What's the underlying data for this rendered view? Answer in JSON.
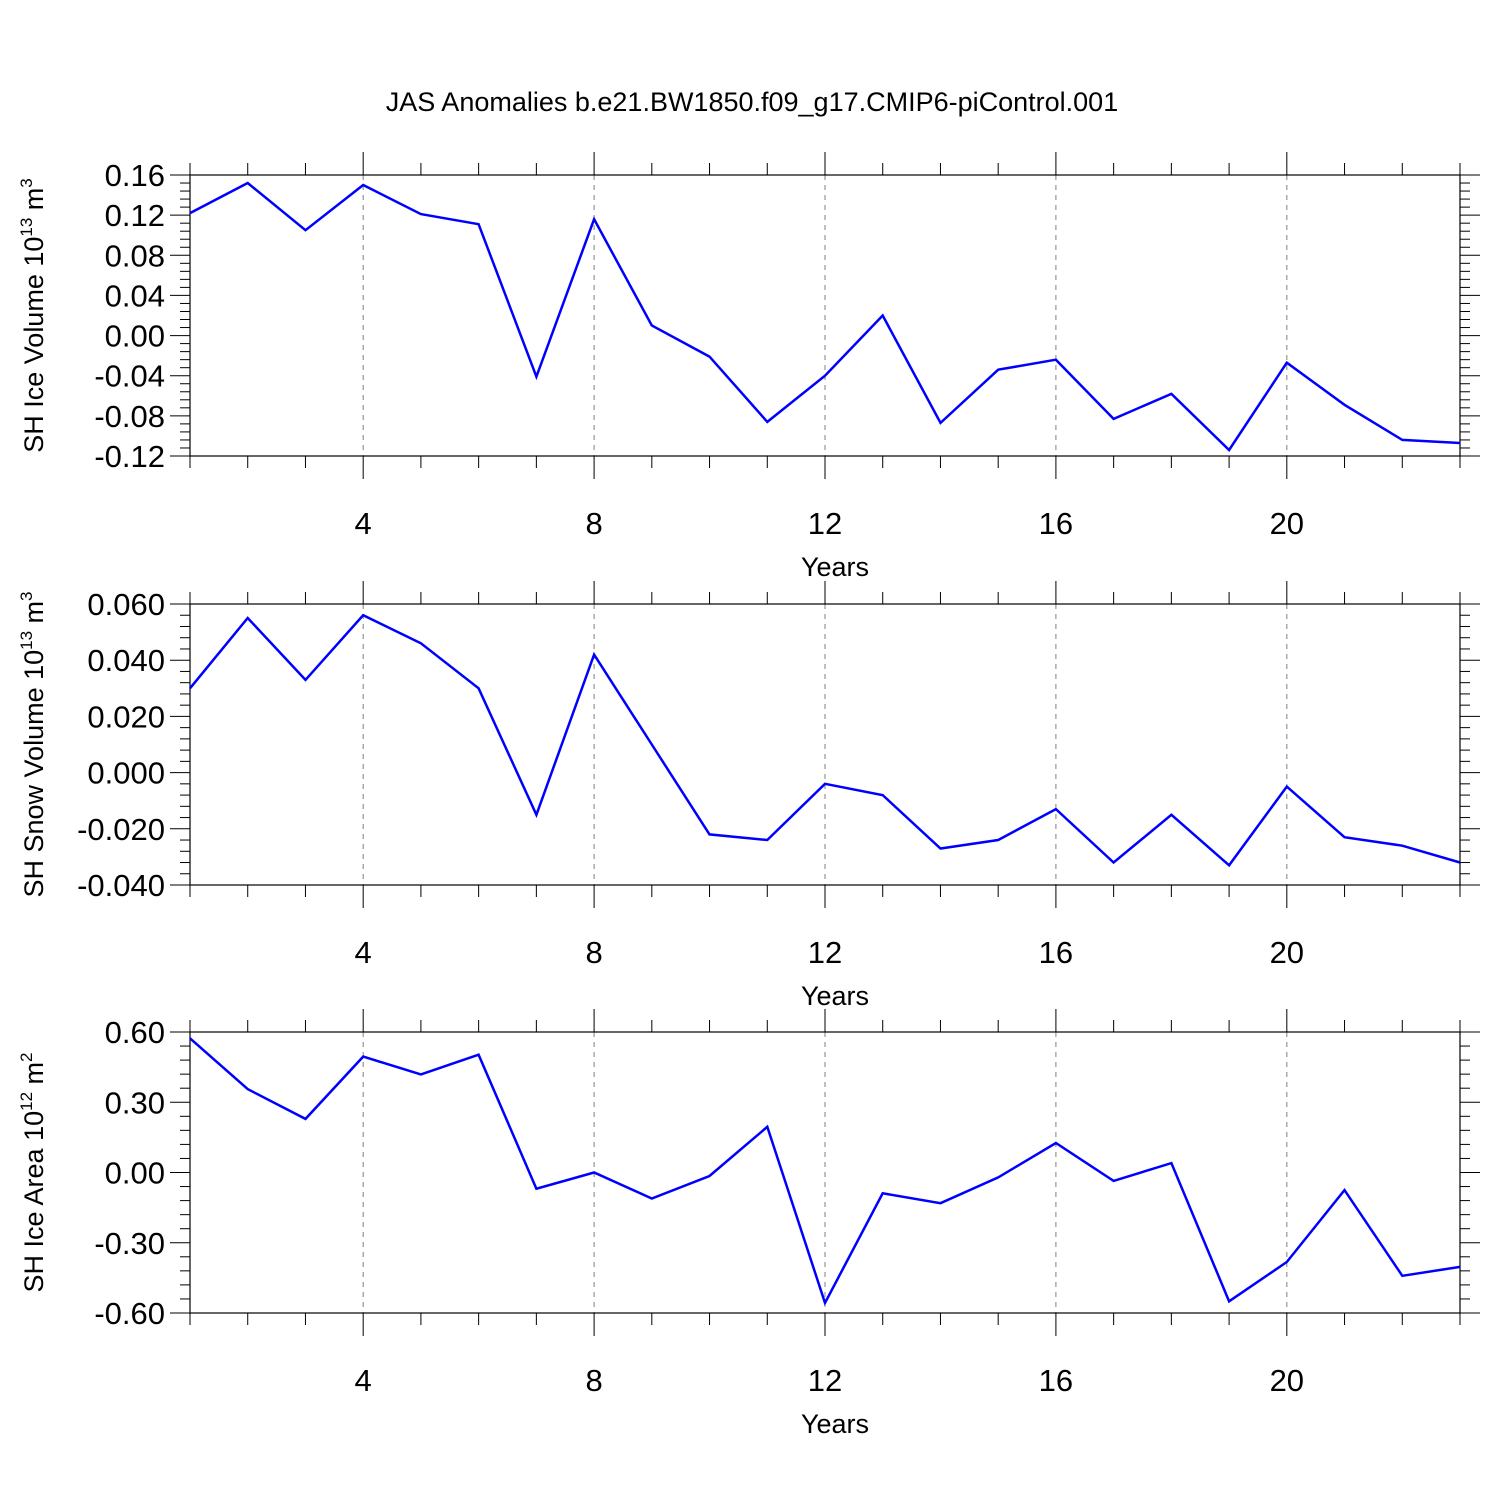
{
  "title": "JAS Anomalies b.e21.BW1850.f09_g17.CMIP6-piControl.001",
  "colors": {
    "line": "#0000ff",
    "axis": "#000000",
    "grid": "#808080"
  },
  "chart_data": [
    {
      "type": "line",
      "ylabel": "SH Ice Volume 10",
      "ylabel_sup": "13",
      "ylabel_unit": " m",
      "ylabel_unit_sup": "3",
      "xlabel": "Years",
      "xlim": [
        1,
        23
      ],
      "ylim": [
        -0.12,
        0.16
      ],
      "yticks": [
        -0.12,
        -0.08,
        -0.04,
        0.0,
        0.04,
        0.08,
        0.12,
        0.16
      ],
      "yticklabels": [
        "-0.12",
        "-0.08",
        "-0.04",
        "0.00",
        "0.04",
        "0.08",
        "0.12",
        "0.16"
      ],
      "xticks": [
        4,
        8,
        12,
        16,
        20
      ],
      "xticklabels": [
        "4",
        "8",
        "12",
        "16",
        "20"
      ],
      "grid_x": true,
      "series": [
        {
          "x": [
            1,
            2,
            3,
            4,
            5,
            6,
            7,
            8,
            9,
            10,
            11,
            12,
            13,
            14,
            15,
            16,
            17,
            18,
            19,
            20,
            21,
            22,
            23
          ],
          "values": [
            0.122,
            0.152,
            0.105,
            0.15,
            0.121,
            0.111,
            -0.041,
            0.116,
            0.01,
            -0.021,
            -0.086,
            -0.04,
            0.02,
            -0.087,
            -0.034,
            -0.024,
            -0.083,
            -0.058,
            -0.114,
            -0.027,
            -0.069,
            -0.104,
            -0.107
          ]
        }
      ]
    },
    {
      "type": "line",
      "ylabel": "SH Snow Volume 10",
      "ylabel_sup": "13",
      "ylabel_unit": " m",
      "ylabel_unit_sup": "3",
      "xlabel": "Years",
      "xlim": [
        1,
        23
      ],
      "ylim": [
        -0.04,
        0.06
      ],
      "yticks": [
        -0.04,
        -0.02,
        0.0,
        0.02,
        0.04,
        0.06
      ],
      "yticklabels": [
        "-0.040",
        "-0.020",
        "0.000",
        "0.020",
        "0.040",
        "0.060"
      ],
      "xticks": [
        4,
        8,
        12,
        16,
        20
      ],
      "xticklabels": [
        "4",
        "8",
        "12",
        "16",
        "20"
      ],
      "grid_x": true,
      "series": [
        {
          "x": [
            1,
            2,
            3,
            4,
            5,
            6,
            7,
            8,
            9,
            10,
            11,
            12,
            13,
            14,
            15,
            16,
            17,
            18,
            19,
            20,
            21,
            22,
            23
          ],
          "values": [
            0.03,
            0.055,
            0.033,
            0.056,
            0.046,
            0.03,
            -0.015,
            0.042,
            0.01,
            -0.022,
            -0.024,
            -0.004,
            -0.008,
            -0.027,
            -0.024,
            -0.013,
            -0.032,
            -0.015,
            -0.033,
            -0.005,
            -0.023,
            -0.026,
            -0.032
          ]
        }
      ]
    },
    {
      "type": "line",
      "ylabel": "SH Ice Area 10",
      "ylabel_sup": "12",
      "ylabel_unit": " m",
      "ylabel_unit_sup": "2",
      "xlabel": "Years",
      "xlim": [
        1,
        23
      ],
      "ylim": [
        -0.6,
        0.6
      ],
      "yticks": [
        -0.6,
        -0.3,
        0.0,
        0.3,
        0.6
      ],
      "yticklabels": [
        "-0.60",
        "-0.30",
        "0.00",
        "0.30",
        "0.60"
      ],
      "xticks": [
        4,
        8,
        12,
        16,
        20
      ],
      "xticklabels": [
        "4",
        "8",
        "12",
        "16",
        "20"
      ],
      "grid_x": true,
      "series": [
        {
          "x": [
            1,
            2,
            3,
            4,
            5,
            6,
            7,
            8,
            9,
            10,
            11,
            12,
            13,
            14,
            15,
            16,
            17,
            18,
            19,
            20,
            21,
            22,
            23
          ],
          "values": [
            0.573,
            0.356,
            0.229,
            0.495,
            0.419,
            0.503,
            -0.069,
            0.0,
            -0.111,
            -0.015,
            0.195,
            -0.557,
            -0.089,
            -0.131,
            -0.021,
            0.126,
            -0.036,
            0.04,
            -0.55,
            -0.382,
            -0.075,
            -0.441,
            -0.403
          ]
        }
      ]
    }
  ]
}
